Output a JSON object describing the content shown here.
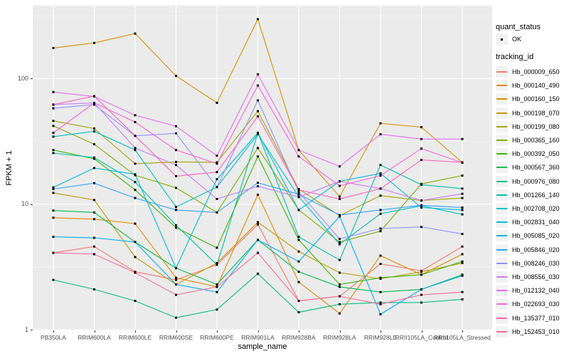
{
  "figure": {
    "panel_bg": "#EBEBEB",
    "grid_color": "#FFFFFF",
    "point_color": "#000000",
    "axis_text_color": "#4D4D4D",
    "x_axis": {
      "title": "sample_name"
    },
    "y_axis": {
      "title": "FPKM + 1",
      "scale": "log10",
      "ticks": [
        "1",
        "10",
        "100"
      ],
      "tick_values": [
        1,
        10,
        100
      ],
      "minor_tick_values": [
        3.1623,
        31.623,
        316.23
      ]
    },
    "legend": {
      "quant_status": {
        "title": "quant_status",
        "items": [
          {
            "label": "OK",
            "shape": "black-point"
          }
        ]
      },
      "tracking_id": {
        "title": "tracking_id"
      }
    }
  },
  "chart_data": {
    "type": "line",
    "title": "",
    "xlabel": "sample_name",
    "ylabel": "FPKM + 1",
    "y_scale": "log10",
    "ylim": [
      1,
      370
    ],
    "grid": true,
    "legend_position": "right",
    "point_shape": "small-black-square",
    "categories": [
      "PB350LA",
      "RRIM600LA",
      "RRIM600LE",
      "RRIM600SE",
      "RRIM600PE",
      "RRIM901LA",
      "RRIM928BA",
      "RRIM928LA",
      "RRIM928LE",
      "RRII105LA_Control",
      "RRII105LA_Stressed"
    ],
    "series": [
      {
        "name": "Hb_000009_650",
        "color": "#F8766D",
        "values": [
          4.1,
          4.6,
          2.9,
          2.5,
          3.3,
          6.9,
          1.7,
          1.85,
          3.35,
          2.95,
          4.6
        ]
      },
      {
        "name": "Hb_000140_490",
        "color": "#E38900",
        "values": [
          7.8,
          7.6,
          7.0,
          2.6,
          2.2,
          11.9,
          2.4,
          1.35,
          3.9,
          2.75,
          4.0
        ]
      },
      {
        "name": "Hb_000160_150",
        "color": "#D89000",
        "values": [
          175,
          192,
          228,
          105,
          64,
          297,
          27,
          11.5,
          44,
          41,
          21.5
        ]
      },
      {
        "name": "Hb_000198_070",
        "color": "#C09B00",
        "values": [
          12.3,
          10.8,
          3.8,
          2.3,
          3.4,
          7.2,
          4.2,
          2.85,
          2.55,
          2.9,
          3.4
        ]
      },
      {
        "name": "Hb_000199_080",
        "color": "#A3A500",
        "values": [
          46,
          40,
          21,
          21.7,
          21.5,
          55,
          13.2,
          8.1,
          11.7,
          10.7,
          11.2
        ]
      },
      {
        "name": "Hb_000365_160",
        "color": "#7CAE00",
        "values": [
          42,
          30,
          17,
          13.5,
          8.6,
          28,
          9.0,
          5.0,
          6.1,
          14.5,
          16.9
        ]
      },
      {
        "name": "Hb_000392_050",
        "color": "#39B600",
        "values": [
          27,
          23,
          13,
          6.5,
          4.5,
          24,
          5.2,
          2.3,
          2.6,
          2.75,
          3.5
        ]
      },
      {
        "name": "Hb_000567_360",
        "color": "#00BB4E",
        "values": [
          8.9,
          8.6,
          5.0,
          3.1,
          2.3,
          5.2,
          2.9,
          2.2,
          2.0,
          2.1,
          2.75
        ]
      },
      {
        "name": "Hb_000976_080",
        "color": "#00BF7D",
        "values": [
          2.5,
          2.1,
          1.7,
          1.25,
          1.45,
          2.8,
          1.38,
          1.6,
          1.65,
          1.65,
          1.75
        ]
      },
      {
        "name": "Hb_001266_140",
        "color": "#00C1A3",
        "values": [
          25.5,
          23.5,
          15,
          6.8,
          3.3,
          37,
          5.5,
          3.6,
          20.5,
          14.3,
          13.3
        ]
      },
      {
        "name": "Hb_002708_020",
        "color": "#00BFC4",
        "values": [
          34.5,
          38,
          27,
          9.5,
          13.7,
          36,
          11.5,
          4.8,
          8.4,
          9.7,
          8.3
        ]
      },
      {
        "name": "Hb_002831_040",
        "color": "#00BADE",
        "values": [
          13.6,
          19.4,
          17.3,
          3.1,
          15.8,
          37,
          9.0,
          15.2,
          17.6,
          9.4,
          9.0
        ]
      },
      {
        "name": "Hb_005085_020",
        "color": "#00B0F6",
        "values": [
          5.5,
          5.4,
          5.0,
          2.3,
          2.0,
          5.2,
          3.5,
          8.0,
          1.33,
          2.1,
          2.7
        ]
      },
      {
        "name": "Hb_005846_020",
        "color": "#35A2FF",
        "values": [
          13.2,
          14.7,
          11.2,
          9.0,
          8.6,
          14.8,
          12.0,
          8.2,
          9.0,
          9.8,
          9.4
        ]
      },
      {
        "name": "Hb_008246_030",
        "color": "#9590FF",
        "values": [
          58,
          62,
          35,
          36.6,
          13.7,
          67,
          12.5,
          5.3,
          6.4,
          6.6,
          5.8
        ]
      },
      {
        "name": "Hb_008556_030",
        "color": "#C77CFF",
        "values": [
          62,
          64,
          28,
          20.5,
          11.0,
          13.9,
          11.4,
          15.2,
          13.3,
          10.7,
          12.1
        ]
      },
      {
        "name": "Hb_012132_040",
        "color": "#E76BF3",
        "values": [
          78,
          72,
          51,
          41.7,
          24.3,
          108,
          27,
          20,
          36,
          33,
          33
        ]
      },
      {
        "name": "Hb_022693_030",
        "color": "#FA62DB",
        "values": [
          37,
          64,
          45,
          27,
          21,
          88,
          24,
          14,
          16.9,
          27.7,
          21.4
        ]
      },
      {
        "name": "Hb_135377_010",
        "color": "#FF62BC",
        "values": [
          62,
          72.5,
          35,
          16.7,
          18,
          50,
          13,
          11,
          13.3,
          22.5,
          21.5
        ]
      },
      {
        "name": "Hb_152453_010",
        "color": "#FF6A98",
        "values": [
          4.1,
          4.0,
          2.85,
          1.9,
          2.2,
          4.1,
          1.7,
          1.85,
          1.6,
          1.9,
          2.0
        ]
      }
    ]
  }
}
